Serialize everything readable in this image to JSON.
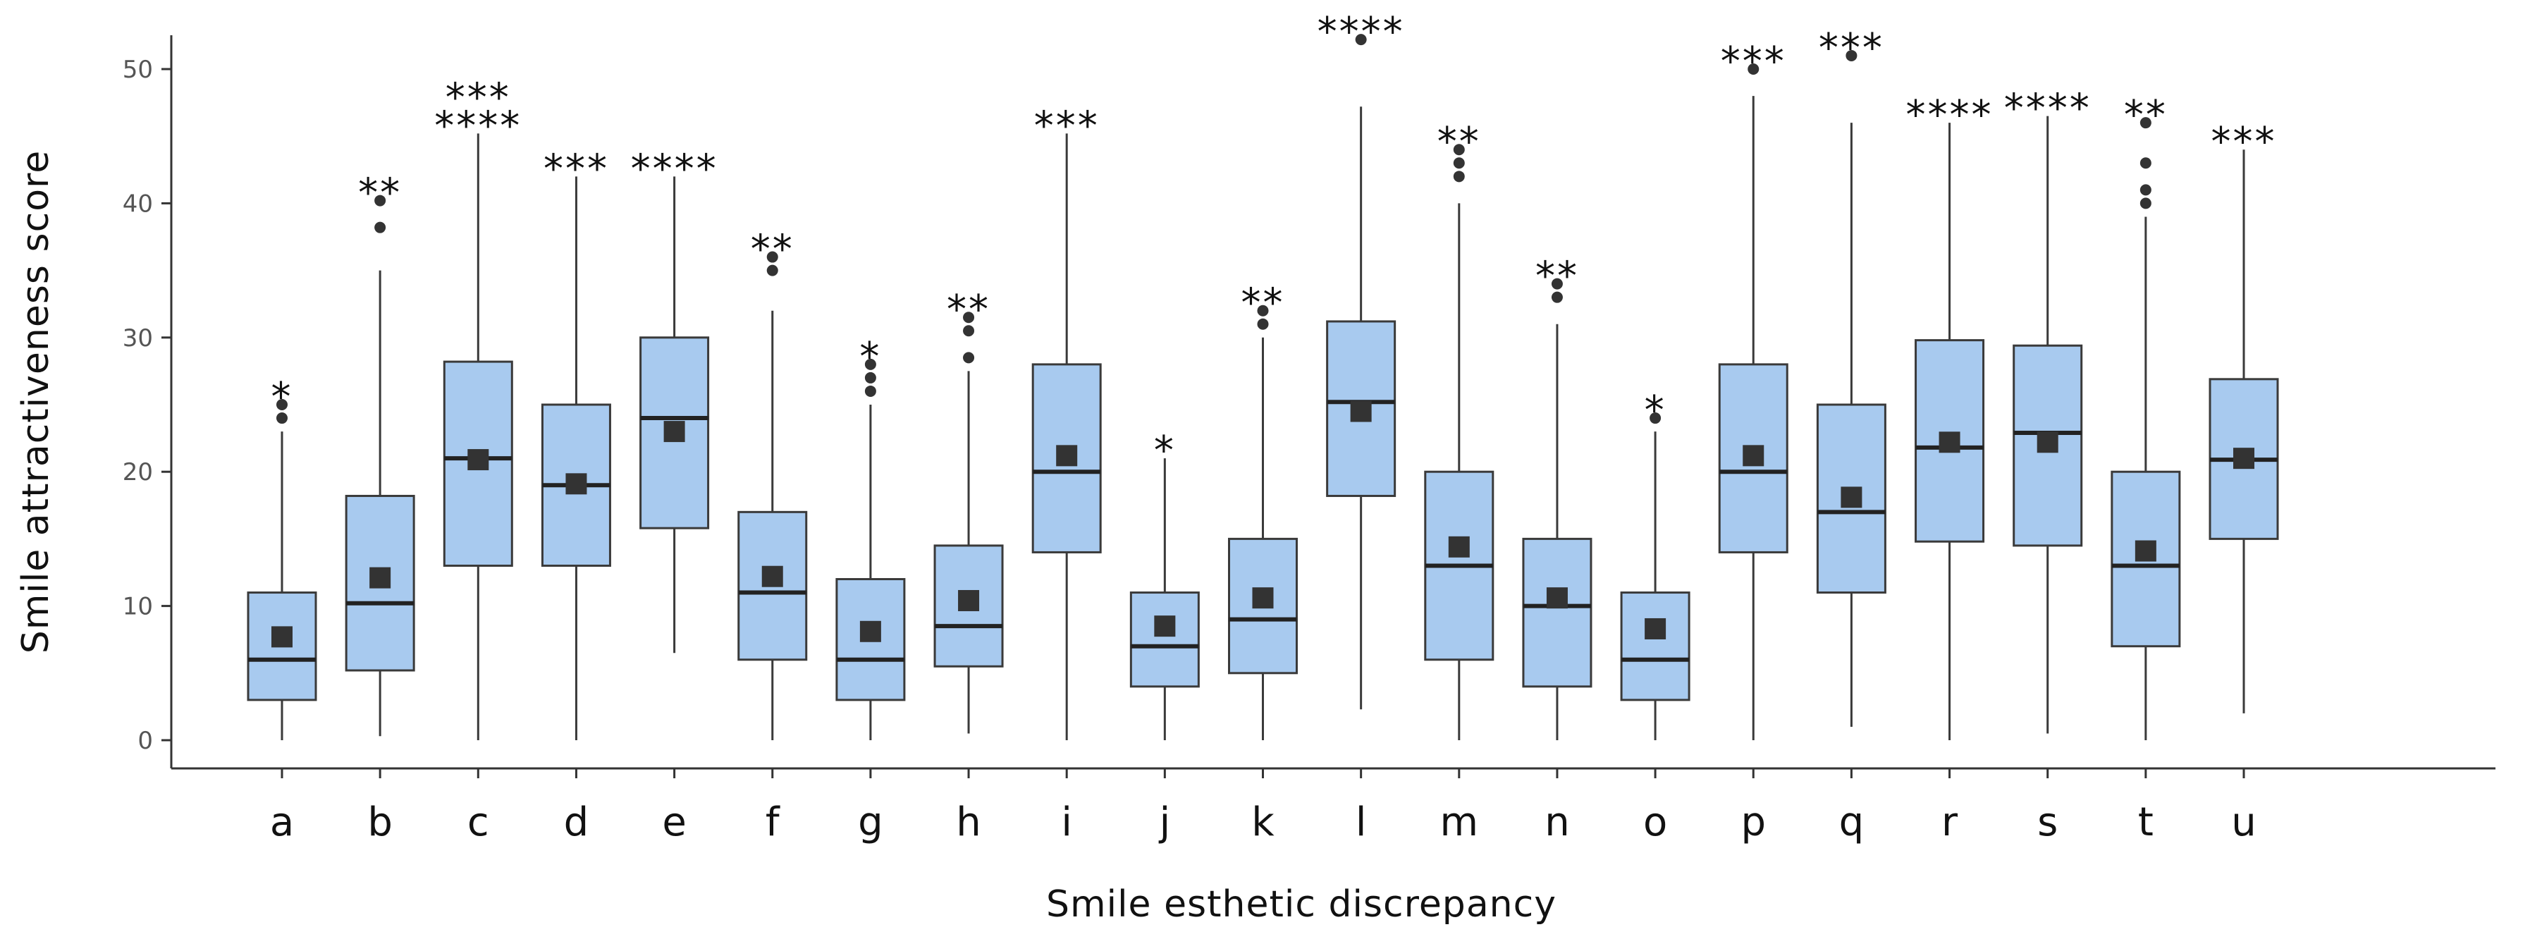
{
  "chart_data": {
    "type": "boxplot",
    "xlabel": "Smile esthetic discrepancy",
    "ylabel": "Smile attractiveness score",
    "ylim": [
      0,
      52
    ],
    "yticks": [
      0,
      10,
      20,
      30,
      40,
      50
    ],
    "grid": false,
    "legend": "none",
    "colors": {
      "box_fill": "#a8caef",
      "box_stroke": "#3a3a3a",
      "mean_marker": "#333333",
      "outlier": "#333333"
    },
    "categories": [
      "a",
      "b",
      "c",
      "d",
      "e",
      "f",
      "g",
      "h",
      "i",
      "j",
      "k",
      "l",
      "m",
      "n",
      "o",
      "p",
      "q",
      "r",
      "s",
      "t",
      "u"
    ],
    "boxes": [
      {
        "label": "a",
        "whisker_low": 0,
        "q1": 3,
        "median": 6,
        "q3": 11,
        "whisker_high": 23,
        "mean": 7.7,
        "outliers": [
          24,
          25
        ],
        "significance": [
          "*"
        ]
      },
      {
        "label": "b",
        "whisker_low": 0.3,
        "q1": 5.2,
        "median": 10.2,
        "q3": 18.2,
        "whisker_high": 35,
        "mean": 12.1,
        "outliers": [
          38.2,
          40.2
        ],
        "significance": [
          "**"
        ]
      },
      {
        "label": "c",
        "whisker_low": 0,
        "q1": 13,
        "median": 21,
        "q3": 28.2,
        "whisker_high": 45.2,
        "mean": 20.9,
        "outliers": [],
        "significance": [
          "***",
          "****"
        ]
      },
      {
        "label": "d",
        "whisker_low": 0,
        "q1": 13,
        "median": 19,
        "q3": 25,
        "whisker_high": 42,
        "mean": 19.1,
        "outliers": [],
        "significance": [
          "***"
        ]
      },
      {
        "label": "e",
        "whisker_low": 6.5,
        "q1": 15.8,
        "median": 24,
        "q3": 30,
        "whisker_high": 42,
        "mean": 23,
        "outliers": [],
        "significance": [
          "****"
        ]
      },
      {
        "label": "f",
        "whisker_low": 0,
        "q1": 6,
        "median": 11,
        "q3": 17,
        "whisker_high": 32,
        "mean": 12.2,
        "outliers": [
          35,
          36
        ],
        "significance": [
          "**"
        ]
      },
      {
        "label": "g",
        "whisker_low": 0,
        "q1": 3,
        "median": 6,
        "q3": 12,
        "whisker_high": 25,
        "mean": 8.1,
        "outliers": [
          26,
          27,
          28
        ],
        "significance": [
          "*"
        ]
      },
      {
        "label": "h",
        "whisker_low": 0.5,
        "q1": 5.5,
        "median": 8.5,
        "q3": 14.5,
        "whisker_high": 27.5,
        "mean": 10.4,
        "outliers": [
          28.5,
          30.5,
          31.5
        ],
        "significance": [
          "**"
        ]
      },
      {
        "label": "i",
        "whisker_low": 0,
        "q1": 14,
        "median": 20,
        "q3": 28,
        "whisker_high": 45.2,
        "mean": 21.2,
        "outliers": [],
        "significance": [
          "***"
        ]
      },
      {
        "label": "j",
        "whisker_low": 0,
        "q1": 4,
        "median": 7,
        "q3": 11,
        "whisker_high": 21,
        "mean": 8.5,
        "outliers": [],
        "significance": [
          "*"
        ]
      },
      {
        "label": "k",
        "whisker_low": 0,
        "q1": 5,
        "median": 9,
        "q3": 15,
        "whisker_high": 30,
        "mean": 10.6,
        "outliers": [
          31,
          32
        ],
        "significance": [
          "**"
        ]
      },
      {
        "label": "l",
        "whisker_low": 2.3,
        "q1": 18.2,
        "median": 25.2,
        "q3": 31.2,
        "whisker_high": 47.2,
        "mean": 24.5,
        "outliers": [
          52.2
        ],
        "significance": [
          "****"
        ]
      },
      {
        "label": "m",
        "whisker_low": 0,
        "q1": 6,
        "median": 13,
        "q3": 20,
        "whisker_high": 40,
        "mean": 14.4,
        "outliers": [
          42,
          43,
          44
        ],
        "significance": [
          "**"
        ]
      },
      {
        "label": "n",
        "whisker_low": 0,
        "q1": 4,
        "median": 10,
        "q3": 15,
        "whisker_high": 31,
        "mean": 10.6,
        "outliers": [
          33,
          34
        ],
        "significance": [
          "**"
        ]
      },
      {
        "label": "o",
        "whisker_low": 0,
        "q1": 3,
        "median": 6,
        "q3": 11,
        "whisker_high": 23,
        "mean": 8.3,
        "outliers": [
          24
        ],
        "significance": [
          "*"
        ]
      },
      {
        "label": "p",
        "whisker_low": 0,
        "q1": 14,
        "median": 20,
        "q3": 28,
        "whisker_high": 48,
        "mean": 21.2,
        "outliers": [
          50
        ],
        "significance": [
          "***"
        ]
      },
      {
        "label": "q",
        "whisker_low": 1,
        "q1": 11,
        "median": 17,
        "q3": 25,
        "whisker_high": 46,
        "mean": 18.1,
        "outliers": [
          51
        ],
        "significance": [
          "***"
        ]
      },
      {
        "label": "r",
        "whisker_low": 0,
        "q1": 14.8,
        "median": 21.8,
        "q3": 29.8,
        "whisker_high": 46,
        "mean": 22.2,
        "outliers": [],
        "significance": [
          "****"
        ]
      },
      {
        "label": "s",
        "whisker_low": 0.5,
        "q1": 14.5,
        "median": 22.9,
        "q3": 29.4,
        "whisker_high": 46.5,
        "mean": 22.2,
        "outliers": [],
        "significance": [
          "****"
        ]
      },
      {
        "label": "t",
        "whisker_low": 0,
        "q1": 7,
        "median": 13,
        "q3": 20,
        "whisker_high": 39,
        "mean": 14.1,
        "outliers": [
          40,
          41,
          43,
          46
        ],
        "significance": [
          "**"
        ]
      },
      {
        "label": "u",
        "whisker_low": 2,
        "q1": 15,
        "median": 20.9,
        "q3": 26.9,
        "whisker_high": 44,
        "mean": 21,
        "outliers": [],
        "significance": [
          "***"
        ]
      }
    ]
  }
}
